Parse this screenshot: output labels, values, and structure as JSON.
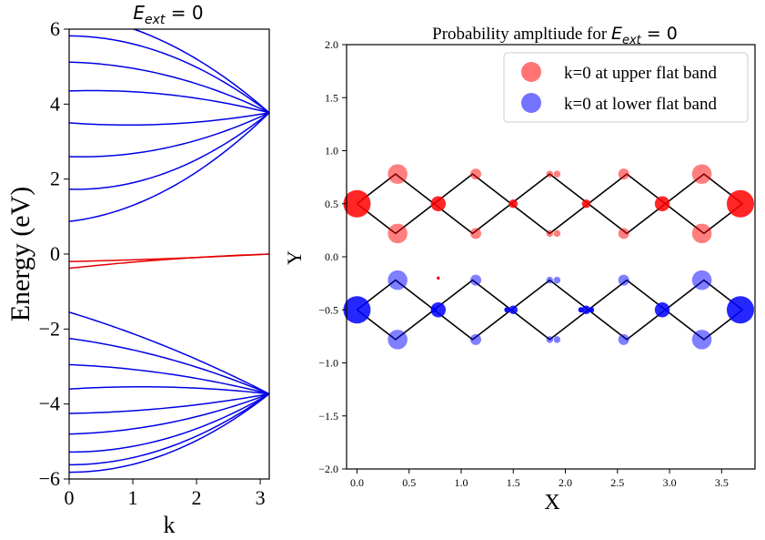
{
  "band_chart": {
    "type": "line",
    "title_var": "E",
    "title_sub": "ext",
    "title_rest": " = 0",
    "xlabel": "k",
    "ylabel": "Energy (eV)",
    "xlim": [
      0,
      3.1416
    ],
    "ylim": [
      -6,
      6
    ],
    "xticks": [
      "0",
      "1",
      "2",
      "3"
    ],
    "xtick_values": [
      0,
      1,
      2,
      3
    ],
    "yticks": [
      "6",
      "4",
      "2",
      "0",
      "−2",
      "−4",
      "−6"
    ],
    "ytick_values": [
      6,
      4,
      2,
      0,
      -2,
      -4,
      -6
    ],
    "colors": {
      "dispersive": "#0000e6",
      "flat": "#e60000"
    },
    "series": [
      {
        "group": "upper",
        "color": "dispersive",
        "k": [
          0,
          1.5708,
          3.1416
        ],
        "E": [
          0.87,
          1.75,
          3.77
        ]
      },
      {
        "group": "upper",
        "color": "dispersive",
        "k": [
          0,
          1.5708,
          3.1416
        ],
        "E": [
          1.73,
          2.2,
          3.77
        ]
      },
      {
        "group": "upper",
        "color": "dispersive",
        "k": [
          0,
          1.5708,
          3.1416
        ],
        "E": [
          2.6,
          2.85,
          3.77
        ]
      },
      {
        "group": "upper",
        "color": "dispersive",
        "k": [
          0,
          1.5708,
          3.1416
        ],
        "E": [
          3.5,
          3.47,
          3.77
        ]
      },
      {
        "group": "upper",
        "color": "dispersive",
        "k": [
          0,
          1.5708,
          3.1416
        ],
        "E": [
          4.35,
          4.25,
          3.77
        ]
      },
      {
        "group": "upper",
        "color": "dispersive",
        "k": [
          0,
          1.5708,
          3.1416
        ],
        "E": [
          5.12,
          4.75,
          3.77
        ]
      },
      {
        "group": "upper",
        "color": "dispersive",
        "k": [
          0,
          1.5708,
          3.1416
        ],
        "E": [
          5.82,
          5.3,
          3.77
        ]
      },
      {
        "group": "upper",
        "color": "dispersive",
        "k": [
          0,
          1.5708,
          3.1416
        ],
        "E": [
          6.4,
          5.6,
          3.77
        ]
      },
      {
        "group": "flat",
        "color": "flat",
        "k": [
          0,
          1.5708,
          3.1416
        ],
        "E": [
          -0.2,
          -0.12,
          0.0
        ]
      },
      {
        "group": "flat",
        "color": "flat",
        "k": [
          0,
          1.5708,
          3.1416
        ],
        "E": [
          -0.38,
          -0.14,
          0.0
        ]
      },
      {
        "group": "lower",
        "color": "dispersive",
        "k": [
          0,
          1.5708,
          3.1416
        ],
        "E": [
          -1.55,
          -2.5,
          -3.73
        ]
      },
      {
        "group": "lower",
        "color": "dispersive",
        "k": [
          0,
          1.5708,
          3.1416
        ],
        "E": [
          -2.25,
          -2.8,
          -3.73
        ]
      },
      {
        "group": "lower",
        "color": "dispersive",
        "k": [
          0,
          1.5708,
          3.1416
        ],
        "E": [
          -2.95,
          -3.2,
          -3.73
        ]
      },
      {
        "group": "lower",
        "color": "dispersive",
        "k": [
          0,
          1.5708,
          3.1416
        ],
        "E": [
          -3.6,
          -3.55,
          -3.73
        ]
      },
      {
        "group": "lower",
        "color": "dispersive",
        "k": [
          0,
          1.5708,
          3.1416
        ],
        "E": [
          -4.25,
          -4.1,
          -3.73
        ]
      },
      {
        "group": "lower",
        "color": "dispersive",
        "k": [
          0,
          1.5708,
          3.1416
        ],
        "E": [
          -4.8,
          -4.5,
          -3.73
        ]
      },
      {
        "group": "lower",
        "color": "dispersive",
        "k": [
          0,
          1.5708,
          3.1416
        ],
        "E": [
          -5.28,
          -4.9,
          -3.73
        ]
      },
      {
        "group": "lower",
        "color": "dispersive",
        "k": [
          0,
          1.5708,
          3.1416
        ],
        "E": [
          -5.62,
          -5.15,
          -3.73
        ]
      },
      {
        "group": "lower",
        "color": "dispersive",
        "k": [
          0,
          1.5708,
          3.1416
        ],
        "E": [
          -5.82,
          -5.3,
          -3.73
        ]
      }
    ]
  },
  "amp_chart": {
    "type": "scatter",
    "title_prefix": "Probability ampltiude for ",
    "title_var": "E",
    "title_sub": "ext",
    "title_rest": " = 0",
    "xlabel": "X",
    "ylabel": "Y",
    "xlim": [
      -0.1,
      3.82
    ],
    "ylim": [
      -2.0,
      2.0
    ],
    "xticks": [
      "0.0",
      "0.5",
      "1.0",
      "1.5",
      "2.0",
      "2.5",
      "3.0",
      "3.5"
    ],
    "xtick_values": [
      0,
      0.5,
      1.0,
      1.5,
      2.0,
      2.5,
      3.0,
      3.5
    ],
    "yticks": [
      "2.0",
      "1.5",
      "1.0",
      "0.5",
      "0.0",
      "−0.5",
      "−1.0",
      "−1.5",
      "−2.0"
    ],
    "ytick_values": [
      2.0,
      1.5,
      1.0,
      0.5,
      0.0,
      -0.5,
      -1.0,
      -1.5,
      -2.0
    ],
    "legend": {
      "placement": "upper right",
      "entries": [
        {
          "label": "k=0 at upper flat band",
          "color": "#ff0000"
        },
        {
          "label": "k=0 at lower flat band",
          "color": "#0000ff"
        }
      ]
    },
    "lattice_x": [
      0,
      0.37,
      0.74,
      1.11,
      1.48,
      1.85,
      2.22,
      2.59,
      2.96,
      3.33,
      3.7
    ],
    "lattice_upper_y": [
      0.5,
      0.78,
      0.5,
      0.78,
      0.5,
      0.78,
      0.5,
      0.78,
      0.5,
      0.78,
      0.5
    ],
    "lattice_upper_y_alt": [
      0.5,
      0.22,
      0.5,
      0.22,
      0.5,
      0.22,
      0.5,
      0.22,
      0.5,
      0.22,
      0.5
    ],
    "lattice_lower_y": [
      -0.5,
      -0.22,
      -0.5,
      -0.22,
      -0.5,
      -0.22,
      -0.5,
      -0.22,
      -0.5,
      -0.22,
      -0.5
    ],
    "lattice_lower_y_alt": [
      -0.5,
      -0.78,
      -0.5,
      -0.78,
      -0.5,
      -0.78,
      -0.5,
      -0.78,
      -0.5,
      -0.78,
      -0.5
    ],
    "series": [
      {
        "name": "k=0 at upper flat band",
        "color": "#ff0000",
        "points": [
          {
            "x": 0.0,
            "y": 0.5,
            "amp": 1.0,
            "alpha": 0.85
          },
          {
            "x": 0.39,
            "y": 0.78,
            "amp": 0.72,
            "alpha": 0.5
          },
          {
            "x": 0.39,
            "y": 0.22,
            "amp": 0.72,
            "alpha": 0.5
          },
          {
            "x": 0.78,
            "y": 0.5,
            "amp": 0.55,
            "alpha": 0.85
          },
          {
            "x": 1.14,
            "y": 0.78,
            "amp": 0.4,
            "alpha": 0.5
          },
          {
            "x": 1.14,
            "y": 0.22,
            "amp": 0.4,
            "alpha": 0.5
          },
          {
            "x": 1.5,
            "y": 0.5,
            "amp": 0.32,
            "alpha": 0.85
          },
          {
            "x": 1.85,
            "y": 0.78,
            "amp": 0.25,
            "alpha": 0.5
          },
          {
            "x": 1.92,
            "y": 0.78,
            "amp": 0.25,
            "alpha": 0.5
          },
          {
            "x": 1.85,
            "y": 0.22,
            "amp": 0.25,
            "alpha": 0.5
          },
          {
            "x": 1.92,
            "y": 0.22,
            "amp": 0.25,
            "alpha": 0.5
          },
          {
            "x": 2.2,
            "y": 0.5,
            "amp": 0.32,
            "alpha": 0.85
          },
          {
            "x": 2.56,
            "y": 0.78,
            "amp": 0.4,
            "alpha": 0.5
          },
          {
            "x": 2.56,
            "y": 0.22,
            "amp": 0.4,
            "alpha": 0.5
          },
          {
            "x": 2.93,
            "y": 0.5,
            "amp": 0.55,
            "alpha": 0.85
          },
          {
            "x": 3.31,
            "y": 0.78,
            "amp": 0.72,
            "alpha": 0.5
          },
          {
            "x": 3.31,
            "y": 0.22,
            "amp": 0.72,
            "alpha": 0.5
          },
          {
            "x": 3.68,
            "y": 0.5,
            "amp": 1.0,
            "alpha": 0.85
          },
          {
            "x": 0.78,
            "y": -0.2,
            "amp": 0.12,
            "alpha": 0.9
          }
        ]
      },
      {
        "name": "k=0 at lower flat band",
        "color": "#0000ff",
        "points": [
          {
            "x": 0.0,
            "y": -0.5,
            "amp": 1.0,
            "alpha": 0.85
          },
          {
            "x": 0.39,
            "y": -0.22,
            "amp": 0.72,
            "alpha": 0.5
          },
          {
            "x": 0.39,
            "y": -0.78,
            "amp": 0.72,
            "alpha": 0.5
          },
          {
            "x": 0.78,
            "y": -0.5,
            "amp": 0.55,
            "alpha": 0.85
          },
          {
            "x": 1.14,
            "y": -0.22,
            "amp": 0.4,
            "alpha": 0.5
          },
          {
            "x": 1.14,
            "y": -0.78,
            "amp": 0.4,
            "alpha": 0.5
          },
          {
            "x": 1.5,
            "y": -0.5,
            "amp": 0.32,
            "alpha": 0.85
          },
          {
            "x": 1.85,
            "y": -0.22,
            "amp": 0.25,
            "alpha": 0.5
          },
          {
            "x": 1.92,
            "y": -0.22,
            "amp": 0.25,
            "alpha": 0.5
          },
          {
            "x": 1.85,
            "y": -0.78,
            "amp": 0.25,
            "alpha": 0.5
          },
          {
            "x": 1.92,
            "y": -0.78,
            "amp": 0.25,
            "alpha": 0.5
          },
          {
            "x": 2.2,
            "y": -0.5,
            "amp": 0.32,
            "alpha": 0.85
          },
          {
            "x": 2.56,
            "y": -0.22,
            "amp": 0.4,
            "alpha": 0.5
          },
          {
            "x": 2.56,
            "y": -0.78,
            "amp": 0.4,
            "alpha": 0.5
          },
          {
            "x": 2.93,
            "y": -0.5,
            "amp": 0.55,
            "alpha": 0.85
          },
          {
            "x": 3.31,
            "y": -0.22,
            "amp": 0.72,
            "alpha": 0.5
          },
          {
            "x": 3.31,
            "y": -0.78,
            "amp": 0.72,
            "alpha": 0.5
          },
          {
            "x": 3.68,
            "y": -0.5,
            "amp": 1.0,
            "alpha": 0.85
          },
          {
            "x": 0.74,
            "y": -0.5,
            "amp": 0.2,
            "alpha": 0.95
          },
          {
            "x": 1.44,
            "y": -0.5,
            "amp": 0.2,
            "alpha": 0.95
          },
          {
            "x": 2.15,
            "y": -0.5,
            "amp": 0.2,
            "alpha": 0.95
          },
          {
            "x": 2.25,
            "y": -0.5,
            "amp": 0.2,
            "alpha": 0.95
          }
        ]
      }
    ]
  }
}
